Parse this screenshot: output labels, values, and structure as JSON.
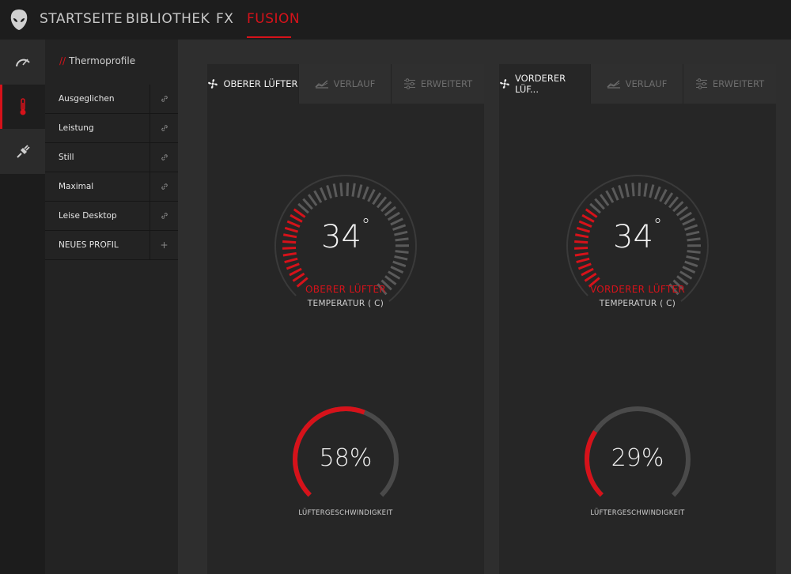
{
  "nav": {
    "items": [
      "STARTSEITE",
      "BIBLIOTHEK",
      "FX",
      "FUSION"
    ],
    "active": "FUSION"
  },
  "profiles": {
    "header_prefix": "//",
    "header": "Thermoprofile",
    "items": [
      {
        "label": "Ausgeglichen",
        "action_icon": "link-icon"
      },
      {
        "label": "Leistung",
        "action_icon": "link-icon"
      },
      {
        "label": "Still",
        "action_icon": "link-icon"
      },
      {
        "label": "Maximal",
        "action_icon": "link-icon"
      },
      {
        "label": "Leise Desktop",
        "action_icon": "link-icon"
      }
    ],
    "new_profile": {
      "label": "NEUES PROFIL",
      "action": "+"
    }
  },
  "cards": [
    {
      "tabs": [
        {
          "label": "OBERER LÜFTER",
          "icon": "fan-icon",
          "active": true
        },
        {
          "label": "VERLAUF",
          "icon": "chart-icon",
          "active": false
        },
        {
          "label": "ERWEITERT",
          "icon": "sliders-icon",
          "active": false
        }
      ],
      "temperature": {
        "value": "34",
        "unit": "°",
        "name": "OBERER LÜFTER",
        "label": "TEMPERATUR ( C)"
      },
      "fan_speed": {
        "value": "58%",
        "fraction": 0.58,
        "label": "LÜFTERGESCHWINDIGKEIT"
      }
    },
    {
      "tabs": [
        {
          "label": "VORDERER LÜF...",
          "icon": "fan-icon",
          "active": true
        },
        {
          "label": "VERLAUF",
          "icon": "chart-icon",
          "active": false
        },
        {
          "label": "ERWEITERT",
          "icon": "sliders-icon",
          "active": false
        }
      ],
      "temperature": {
        "value": "34",
        "unit": "°",
        "name": "VORDERER LÜFTER",
        "label": "TEMPERATUR ( C)"
      },
      "fan_speed": {
        "value": "29%",
        "fraction": 0.29,
        "label": "LÜFTERGESCHWINDIGKEIT"
      }
    }
  ],
  "colors": {
    "accent": "#d6121a",
    "tick_inactive": "#5a5a5a",
    "ring_track": "#4a4a4a"
  }
}
